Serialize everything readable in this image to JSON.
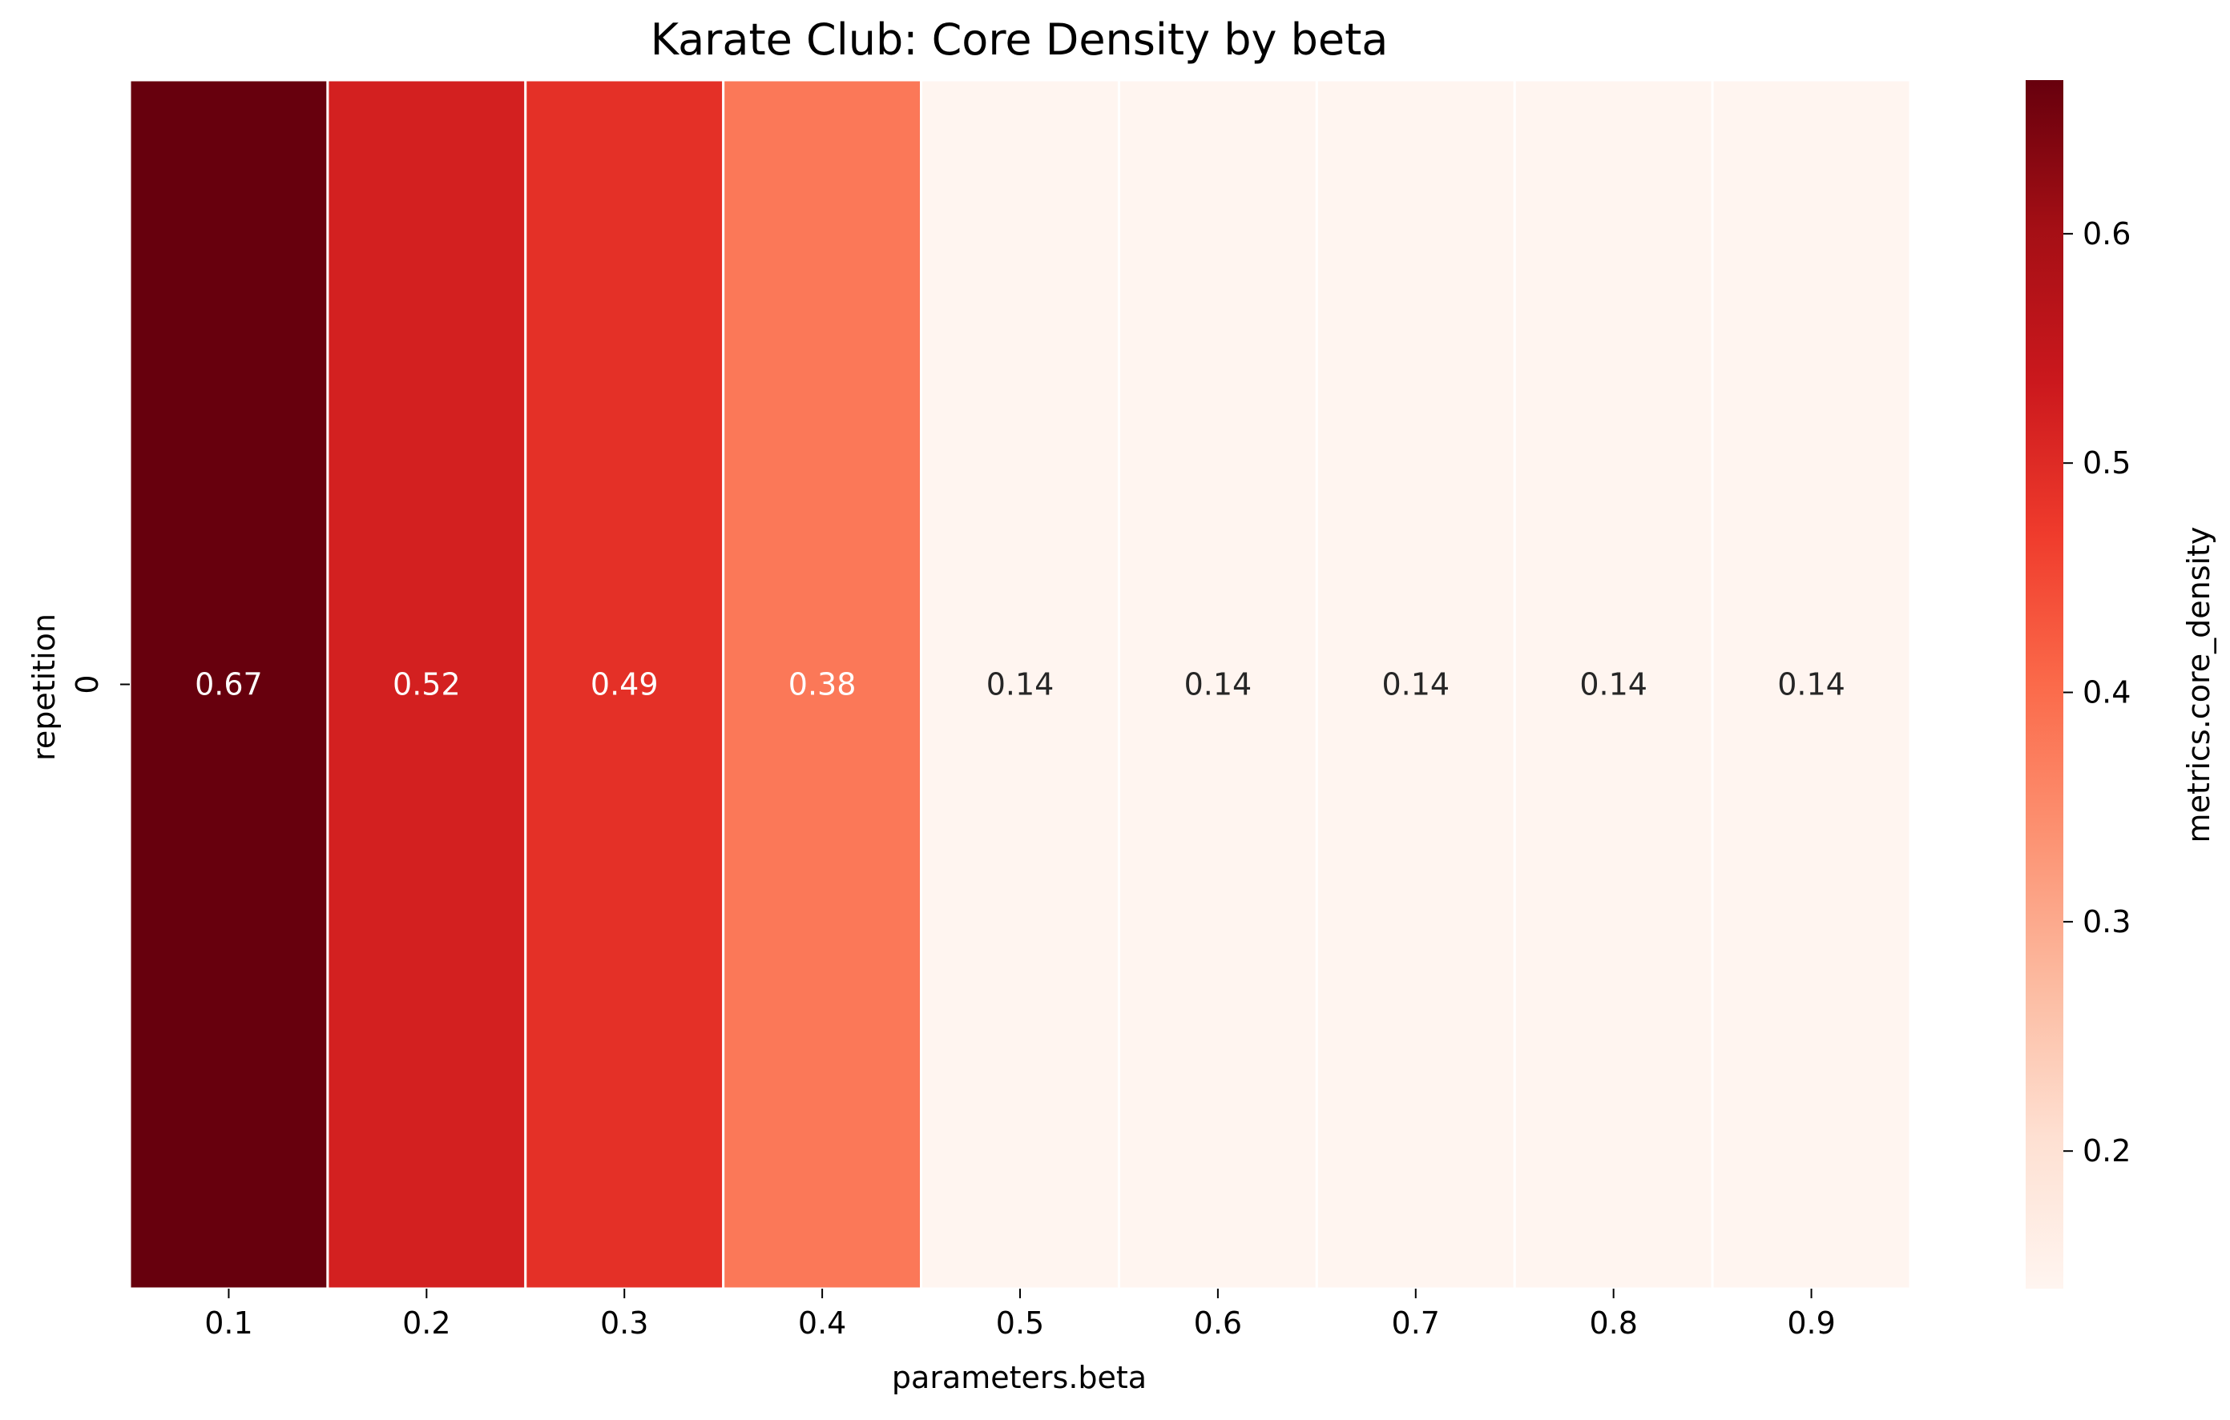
{
  "chart_data": {
    "type": "heatmap",
    "title": "Karate Club: Core Density by beta",
    "xlabel": "parameters.beta",
    "ylabel": "repetition",
    "x_categories": [
      "0.1",
      "0.2",
      "0.3",
      "0.4",
      "0.5",
      "0.6",
      "0.7",
      "0.8",
      "0.9"
    ],
    "y_categories": [
      "0"
    ],
    "values": [
      [
        0.67,
        0.52,
        0.49,
        0.38,
        0.14,
        0.14,
        0.14,
        0.14,
        0.14
      ]
    ],
    "cell_labels": [
      [
        "0.67",
        "0.52",
        "0.49",
        "0.38",
        "0.14",
        "0.14",
        "0.14",
        "0.14",
        "0.14"
      ]
    ],
    "colorbar": {
      "label": "metrics.core_density",
      "range": [
        0.14,
        0.667
      ],
      "ticks": [
        "0.2",
        "0.3",
        "0.4",
        "0.5",
        "0.6"
      ],
      "colormap": "Reds",
      "low_color": "#fff5f0",
      "high_color": "#67000d"
    },
    "grid": false,
    "legend": "colorbar-right"
  }
}
